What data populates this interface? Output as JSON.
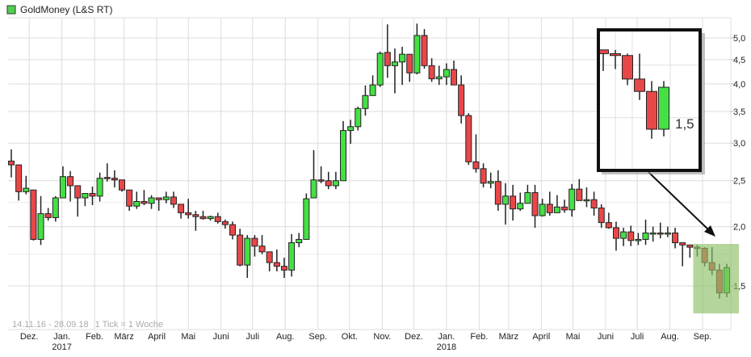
{
  "chart_data": {
    "type": "candlestick",
    "title": "GoldMoney (L&S RT)",
    "legend_color": "#4fd14f",
    "legend_placement": "top-left",
    "info_range": "14.11.16 - 28.09.18",
    "info_tick": "1 Tick = 1 Woche",
    "start_date": "2016-11-14",
    "end_date": "2018-09-28",
    "interval": "week",
    "y_scale": "log",
    "ylim": [
      1.38,
      5.6
    ],
    "grid": true,
    "colors": {
      "up": "#44e044",
      "down": "#e84749",
      "wick": "#222222",
      "highlight": "#8cc068"
    },
    "y_ticks": [
      {
        "value": 5.0,
        "label": "5,0"
      },
      {
        "value": 4.5,
        "label": "4,5"
      },
      {
        "value": 4.0,
        "label": "4,0"
      },
      {
        "value": 3.5,
        "label": "3,5"
      },
      {
        "value": 3.0,
        "label": "3,0"
      },
      {
        "value": 2.5,
        "label": "2,5"
      },
      {
        "value": 2.0,
        "label": "2,0"
      },
      {
        "value": 1.5,
        "label": "1,5"
      }
    ],
    "x_ticks": [
      {
        "label": "Dez.",
        "date": "2016-12-01",
        "year": ""
      },
      {
        "label": "Jan.",
        "date": "2017-01-01",
        "year": "2017"
      },
      {
        "label": "Feb.",
        "date": "2017-02-01",
        "year": ""
      },
      {
        "label": "März",
        "date": "2017-03-01",
        "year": ""
      },
      {
        "label": "April",
        "date": "2017-04-01",
        "year": ""
      },
      {
        "label": "Mai",
        "date": "2017-05-01",
        "year": ""
      },
      {
        "label": "Juni",
        "date": "2017-06-01",
        "year": ""
      },
      {
        "label": "Juli",
        "date": "2017-07-01",
        "year": ""
      },
      {
        "label": "Aug.",
        "date": "2017-08-01",
        "year": ""
      },
      {
        "label": "Sep.",
        "date": "2017-09-01",
        "year": ""
      },
      {
        "label": "Okt.",
        "date": "2017-10-01",
        "year": ""
      },
      {
        "label": "Nov.",
        "date": "2017-11-01",
        "year": ""
      },
      {
        "label": "Dez.",
        "date": "2017-12-01",
        "year": ""
      },
      {
        "label": "Jan.",
        "date": "2018-01-01",
        "year": "2018"
      },
      {
        "label": "Feb.",
        "date": "2018-02-01",
        "year": ""
      },
      {
        "label": "März",
        "date": "2018-03-01",
        "year": ""
      },
      {
        "label": "April",
        "date": "2018-04-01",
        "year": ""
      },
      {
        "label": "Mai",
        "date": "2018-05-01",
        "year": ""
      },
      {
        "label": "Juni",
        "date": "2018-06-01",
        "year": ""
      },
      {
        "label": "Juli",
        "date": "2018-07-01",
        "year": ""
      },
      {
        "label": "Aug.",
        "date": "2018-08-01",
        "year": ""
      },
      {
        "label": "Sep.",
        "date": "2018-09-01",
        "year": ""
      }
    ],
    "ohlc_fields": [
      "open",
      "high",
      "low",
      "close"
    ],
    "candles": [
      [
        2.75,
        2.91,
        2.54,
        2.7
      ],
      [
        2.7,
        2.7,
        2.27,
        2.37
      ],
      [
        2.37,
        2.56,
        2.34,
        2.41
      ],
      [
        2.39,
        2.39,
        1.87,
        1.88
      ],
      [
        1.88,
        2.32,
        1.83,
        2.13
      ],
      [
        2.13,
        2.19,
        2.06,
        2.09
      ],
      [
        2.09,
        2.32,
        2.05,
        2.3
      ],
      [
        2.3,
        2.68,
        2.3,
        2.55
      ],
      [
        2.55,
        2.62,
        2.26,
        2.44
      ],
      [
        2.44,
        2.44,
        2.1,
        2.3
      ],
      [
        2.3,
        2.35,
        2.21,
        2.35
      ],
      [
        2.35,
        2.43,
        2.22,
        2.32
      ],
      [
        2.32,
        2.6,
        2.26,
        2.53
      ],
      [
        2.54,
        2.72,
        2.49,
        2.53
      ],
      [
        2.53,
        2.63,
        2.42,
        2.51
      ],
      [
        2.51,
        2.51,
        2.37,
        2.39
      ],
      [
        2.39,
        2.39,
        2.16,
        2.21
      ],
      [
        2.21,
        2.37,
        2.18,
        2.26
      ],
      [
        2.26,
        2.39,
        2.22,
        2.24
      ],
      [
        2.24,
        2.33,
        2.18,
        2.3
      ],
      [
        2.3,
        2.3,
        2.16,
        2.28
      ],
      [
        2.28,
        2.37,
        2.24,
        2.31
      ],
      [
        2.31,
        2.37,
        2.19,
        2.23
      ],
      [
        2.23,
        2.23,
        2.08,
        2.14
      ],
      [
        2.14,
        2.29,
        2.08,
        2.12
      ],
      [
        2.12,
        2.16,
        1.96,
        2.1
      ],
      [
        2.1,
        2.16,
        2.07,
        2.08
      ],
      [
        2.08,
        2.11,
        2.06,
        2.1
      ],
      [
        2.1,
        2.14,
        2.03,
        2.05
      ],
      [
        2.05,
        2.07,
        1.98,
        2.02
      ],
      [
        2.02,
        2.05,
        1.88,
        1.92
      ],
      [
        1.92,
        1.98,
        1.65,
        1.66
      ],
      [
        1.66,
        1.92,
        1.56,
        1.89
      ],
      [
        1.89,
        1.92,
        1.73,
        1.82
      ],
      [
        1.82,
        1.92,
        1.75,
        1.77
      ],
      [
        1.77,
        1.77,
        1.61,
        1.68
      ],
      [
        1.68,
        1.79,
        1.61,
        1.65
      ],
      [
        1.65,
        1.72,
        1.56,
        1.62
      ],
      [
        1.62,
        1.93,
        1.57,
        1.85
      ],
      [
        1.85,
        1.94,
        1.81,
        1.88
      ],
      [
        1.88,
        2.35,
        1.88,
        2.29
      ],
      [
        2.3,
        2.9,
        2.3,
        2.51
      ],
      [
        2.51,
        2.68,
        2.47,
        2.5
      ],
      [
        2.5,
        2.61,
        2.4,
        2.44
      ],
      [
        2.44,
        2.61,
        2.4,
        2.5
      ],
      [
        2.5,
        3.34,
        2.5,
        3.19
      ],
      [
        3.19,
        3.36,
        2.99,
        3.25
      ],
      [
        3.25,
        3.58,
        3.19,
        3.55
      ],
      [
        3.55,
        3.97,
        3.43,
        3.78
      ],
      [
        3.78,
        4.17,
        3.78,
        3.98
      ],
      [
        3.98,
        4.68,
        3.94,
        4.64
      ],
      [
        4.66,
        5.34,
        4.12,
        4.37
      ],
      [
        4.37,
        4.75,
        3.82,
        4.45
      ],
      [
        4.45,
        4.79,
        3.98,
        4.62
      ],
      [
        4.62,
        4.62,
        4.04,
        4.22
      ],
      [
        4.22,
        5.36,
        4.19,
        5.06
      ],
      [
        5.06,
        5.22,
        4.31,
        4.37
      ],
      [
        4.37,
        4.53,
        4.04,
        4.1
      ],
      [
        4.1,
        4.37,
        3.98,
        4.14
      ],
      [
        4.14,
        4.42,
        3.98,
        4.29
      ],
      [
        4.29,
        4.48,
        3.98,
        3.98
      ],
      [
        3.98,
        4.17,
        3.3,
        3.43
      ],
      [
        3.43,
        3.47,
        2.7,
        2.74
      ],
      [
        2.74,
        3.13,
        2.6,
        2.65
      ],
      [
        2.65,
        2.72,
        2.42,
        2.47
      ],
      [
        2.47,
        2.6,
        2.41,
        2.49
      ],
      [
        2.49,
        2.63,
        2.16,
        2.23
      ],
      [
        2.23,
        2.47,
        2.02,
        2.32
      ],
      [
        2.32,
        2.45,
        2.06,
        2.18
      ],
      [
        2.18,
        2.36,
        2.16,
        2.24
      ],
      [
        2.24,
        2.45,
        2.24,
        2.36
      ],
      [
        2.36,
        2.45,
        1.99,
        2.11
      ],
      [
        2.11,
        2.29,
        2.1,
        2.23
      ],
      [
        2.23,
        2.37,
        2.11,
        2.14
      ],
      [
        2.14,
        2.33,
        2.14,
        2.2
      ],
      [
        2.2,
        2.28,
        2.14,
        2.17
      ],
      [
        2.17,
        2.46,
        2.1,
        2.4
      ],
      [
        2.4,
        2.52,
        2.27,
        2.27
      ],
      [
        2.27,
        2.42,
        2.2,
        2.28
      ],
      [
        2.28,
        2.37,
        2.11,
        2.19
      ],
      [
        2.19,
        2.23,
        1.99,
        2.04
      ],
      [
        2.04,
        2.14,
        1.98,
        1.99
      ],
      [
        1.99,
        2.05,
        1.78,
        1.89
      ],
      [
        1.89,
        1.99,
        1.82,
        1.95
      ],
      [
        1.95,
        2.01,
        1.82,
        1.87
      ],
      [
        1.87,
        1.94,
        1.83,
        1.88
      ],
      [
        1.88,
        2.07,
        1.83,
        1.94
      ],
      [
        1.94,
        2.0,
        1.86,
        1.94
      ],
      [
        1.94,
        2.04,
        1.89,
        1.93
      ],
      [
        1.93,
        2.0,
        1.9,
        1.94
      ],
      [
        1.94,
        1.99,
        1.8,
        1.85
      ],
      [
        1.85,
        1.85,
        1.65,
        1.83
      ],
      [
        1.83,
        1.83,
        1.72,
        1.81
      ],
      [
        1.81,
        1.83,
        1.73,
        1.8
      ],
      [
        1.8,
        1.81,
        1.65,
        1.68
      ],
      [
        1.68,
        1.81,
        1.58,
        1.62
      ],
      [
        1.62,
        1.67,
        1.41,
        1.45
      ],
      [
        1.45,
        1.67,
        1.42,
        1.64
      ]
    ],
    "annotation": {
      "type": "zoom-inset",
      "label": "1,5",
      "label_value": 1.5,
      "highlighted_last_candles": 5,
      "inset_last_candles": 6
    }
  }
}
